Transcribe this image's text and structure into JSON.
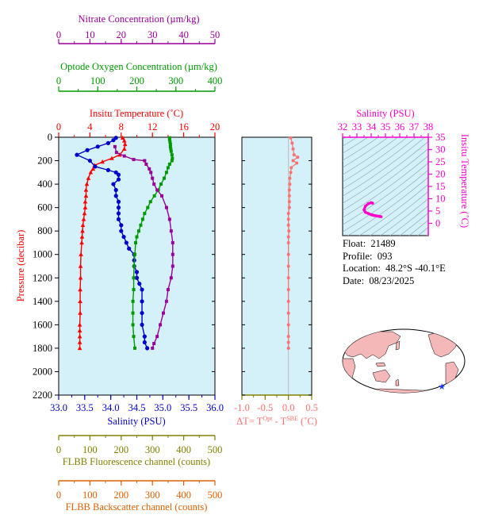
{
  "colors": {
    "temperature": "#ff0000",
    "salinity": "#0000cc",
    "oxygen": "#009900",
    "nitrate": "#990099",
    "fluorescence": "#808000",
    "backscatter": "#e06000",
    "dt": "#ff7070",
    "ts": "#ff00cc",
    "panel_bg": "#d4f0f8"
  },
  "info": {
    "float_label": "Float:",
    "float_value": "21489",
    "profile_label": "Profile:",
    "profile_value": "093",
    "location_label": "Location:",
    "location_value": "48.2°S  -40.1°E",
    "date_label": "Date:",
    "date_value": "08/23/2025"
  },
  "map": {
    "marker_icon": "star-icon"
  },
  "chart_data": [
    {
      "type": "line",
      "panel": "profile",
      "ylabel": "Pressure (decibar)",
      "ylim": [
        2200,
        0
      ],
      "yticks": [
        "0",
        "200",
        "400",
        "600",
        "800",
        "1000",
        "1200",
        "1400",
        "1600",
        "1800",
        "2000",
        "2200"
      ],
      "y_tick_values": [
        0,
        200,
        400,
        600,
        800,
        1000,
        1200,
        1400,
        1600,
        1800,
        2000,
        2200
      ],
      "axes": {
        "temperature": {
          "label": "Insitu Temperature (˚C)",
          "range": [
            0,
            20
          ],
          "ticks": [
            "0",
            "4",
            "8",
            "12",
            "16",
            "20"
          ],
          "tick_values": [
            0,
            4,
            8,
            12,
            16,
            20
          ],
          "minor_step": 2
        },
        "salinity": {
          "label": "Salinity (PSU)",
          "range": [
            33,
            36
          ],
          "ticks": [
            "33.0",
            "33.5",
            "34.0",
            "34.5",
            "35.0",
            "35.5",
            "36.0"
          ],
          "tick_values": [
            33,
            33.5,
            34,
            34.5,
            35,
            35.5,
            36
          ],
          "minor_step": 0.25
        },
        "oxygen": {
          "label": "Optode Oxygen Concentration (µm/kg)",
          "range": [
            0,
            400
          ],
          "ticks": [
            "0",
            "100",
            "200",
            "300",
            "400"
          ],
          "tick_values": [
            0,
            100,
            200,
            300,
            400
          ],
          "minor_step": 50
        },
        "nitrate": {
          "label": "Nitrate Concentration (µm/kg)",
          "range": [
            0,
            50
          ],
          "ticks": [
            "0",
            "10",
            "20",
            "30",
            "40",
            "50"
          ],
          "tick_values": [
            0,
            10,
            20,
            30,
            40,
            50
          ],
          "minor_step": 5
        },
        "fluorescence": {
          "label": "FLBB Fluorescence channel (counts)",
          "range": [
            0,
            500
          ],
          "ticks": [
            "0",
            "100",
            "200",
            "300",
            "400",
            "500"
          ],
          "tick_values": [
            0,
            100,
            200,
            300,
            400,
            500
          ],
          "minor_step": 50
        },
        "backscatter": {
          "label": "FLBB Backscatter channel (counts)",
          "range": [
            0,
            500
          ],
          "ticks": [
            "0",
            "100",
            "200",
            "300",
            "400",
            "500"
          ],
          "tick_values": [
            0,
            100,
            200,
            300,
            400,
            500
          ],
          "minor_step": 50
        }
      },
      "series": [
        {
          "name": "Insitu Temperature",
          "axis": "temperature",
          "x": [
            8.2,
            8.4,
            8.5,
            8.4,
            7.8,
            6.8,
            5.6,
            4.6,
            4.4,
            4.1,
            3.8,
            3.6,
            3.5,
            3.5,
            3.4,
            3.4,
            3.3,
            3.2,
            3.1,
            3.05,
            3.0,
            2.95,
            2.85,
            2.8,
            2.8,
            2.75,
            2.75,
            2.75,
            2.7,
            2.7,
            2.7,
            2.7,
            2.7
          ],
          "y": [
            5,
            30,
            60,
            100,
            150,
            180,
            210,
            240,
            270,
            300,
            350,
            400,
            450,
            500,
            550,
            600,
            650,
            700,
            750,
            800,
            850,
            900,
            1000,
            1100,
            1200,
            1300,
            1400,
            1500,
            1600,
            1650,
            1700,
            1750,
            1800
          ]
        },
        {
          "name": "Salinity",
          "axis": "salinity",
          "x": [
            34.1,
            34.05,
            33.95,
            33.75,
            33.55,
            33.35,
            33.6,
            33.7,
            33.95,
            34.1,
            34.15,
            34.15,
            34.05,
            34.1,
            34.1,
            34.15,
            34.15,
            34.15,
            34.15,
            34.2,
            34.2,
            34.25,
            34.3,
            34.35,
            34.45,
            34.45,
            34.45,
            34.5,
            34.5,
            34.55,
            34.6,
            34.6,
            34.6,
            34.6,
            34.65,
            34.65,
            34.7
          ],
          "y": [
            5,
            25,
            50,
            80,
            110,
            150,
            200,
            250,
            280,
            300,
            320,
            360,
            400,
            450,
            500,
            550,
            600,
            650,
            700,
            750,
            800,
            850,
            900,
            950,
            1000,
            1050,
            1100,
            1150,
            1200,
            1250,
            1300,
            1400,
            1500,
            1600,
            1700,
            1750,
            1800
          ]
        },
        {
          "name": "Optode Oxygen",
          "axis": "oxygen",
          "x": [
            284,
            284,
            285,
            286,
            286,
            287,
            288,
            290,
            291,
            290,
            284,
            280,
            276,
            270,
            262,
            255,
            245,
            235,
            228,
            220,
            215,
            210,
            205,
            200,
            197,
            195,
            193,
            192,
            192,
            190,
            190,
            190,
            192,
            195
          ],
          "y": [
            5,
            20,
            40,
            60,
            80,
            100,
            120,
            150,
            180,
            200,
            230,
            260,
            300,
            350,
            400,
            450,
            500,
            550,
            600,
            650,
            700,
            750,
            800,
            850,
            900,
            1000,
            1100,
            1200,
            1300,
            1400,
            1500,
            1600,
            1700,
            1800
          ]
        },
        {
          "name": "Nitrate",
          "axis": "nitrate",
          "x": [
            18.0,
            18.5,
            21.0,
            24.0,
            27.5,
            28.0,
            29.0,
            29.5,
            30.0,
            30.5,
            31.5,
            33.0,
            34.5,
            35.5,
            36.0,
            36.5,
            36.5,
            36.5,
            36.0,
            35.0,
            34.5,
            33.5,
            32.5,
            31.5,
            30.5,
            30.0
          ],
          "y": [
            80,
            130,
            160,
            190,
            200,
            230,
            270,
            300,
            350,
            400,
            450,
            500,
            600,
            700,
            800,
            900,
            1000,
            1100,
            1200,
            1300,
            1400,
            1500,
            1600,
            1700,
            1760,
            1800
          ]
        }
      ]
    },
    {
      "type": "line",
      "panel": "delta-t",
      "xlabel": "ΔT= TOpt - TSBE (˚C)",
      "xlabel_parts": {
        "prefix": "ΔT= T",
        "sup1": "Opt",
        "mid": " - T",
        "sup2": "SBE",
        "suffix": " (˚C)"
      },
      "xlim": [
        -1.0,
        0.5
      ],
      "xticks": [
        "-1.0",
        "-0.5",
        "0.0",
        "0.5"
      ],
      "x_tick_values": [
        -1.0,
        -0.5,
        0.0,
        0.5
      ],
      "minor_step": 0.25,
      "series": [
        {
          "name": "ΔT",
          "x": [
            0.05,
            0.08,
            0.1,
            0.12,
            0.2,
            0.1,
            0.18,
            0.06,
            0.05,
            0.03,
            0.03,
            0.02,
            0.02,
            0.02,
            0.02,
            0.0,
            0.0,
            0.0,
            0.01,
            0.0,
            0.0,
            0.0,
            0.0,
            0.0,
            0.0,
            0.0,
            0.0,
            0.0,
            0.0,
            0.0,
            0.0
          ],
          "y": [
            5,
            50,
            100,
            150,
            170,
            200,
            220,
            260,
            300,
            350,
            400,
            450,
            500,
            550,
            600,
            650,
            700,
            750,
            800,
            850,
            900,
            1000,
            1100,
            1200,
            1300,
            1400,
            1500,
            1600,
            1700,
            1750,
            1800
          ]
        }
      ]
    },
    {
      "type": "line",
      "panel": "t-s",
      "xlabel": "Salinity (PSU)",
      "ylabel": "Insitu Temperature (˚C)",
      "xlim": [
        32,
        38
      ],
      "ylim": [
        -5,
        35
      ],
      "xticks": [
        "32",
        "33",
        "34",
        "35",
        "36",
        "37",
        "38"
      ],
      "x_tick_values": [
        32,
        33,
        34,
        35,
        36,
        37,
        38
      ],
      "yticks": [
        "0",
        "5",
        "10",
        "15",
        "20",
        "25",
        "30",
        "35"
      ],
      "y_tick_values": [
        0,
        5,
        10,
        15,
        20,
        25,
        30,
        35
      ],
      "series": [
        {
          "name": "T-S",
          "x": [
            34.1,
            34.0,
            33.8,
            33.6,
            33.5,
            33.6,
            33.8,
            34.0,
            34.1,
            34.2,
            34.3,
            34.4,
            34.5,
            34.6,
            34.7
          ],
          "y": [
            8.2,
            8.4,
            8.0,
            7.0,
            5.5,
            4.5,
            4.0,
            3.5,
            3.4,
            3.2,
            3.1,
            3.0,
            2.9,
            2.8,
            2.7
          ]
        }
      ]
    }
  ]
}
